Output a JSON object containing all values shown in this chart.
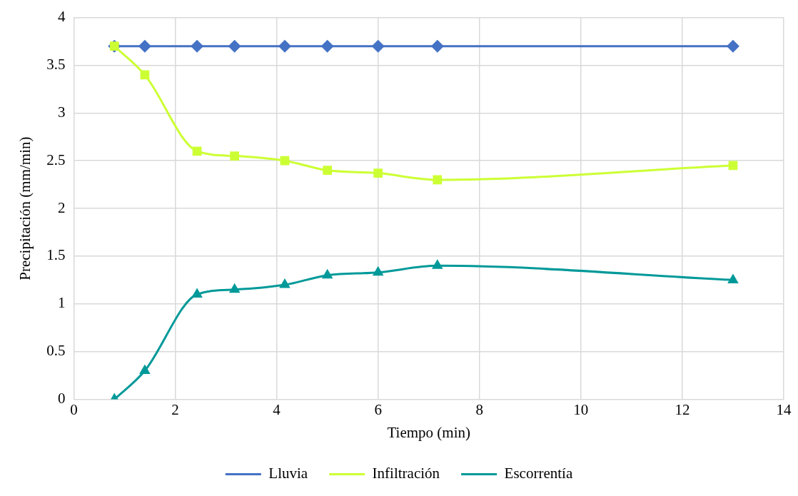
{
  "chart_data": {
    "type": "line",
    "xlabel": "Tiempo (min)",
    "ylabel": "Precipitación (mm/min)",
    "x": [
      0.8,
      1.4,
      2.43,
      3.17,
      4.16,
      5.0,
      6.0,
      7.17,
      13.0
    ],
    "series": [
      {
        "name": "Lluvia",
        "color": "#4472c4",
        "marker": "diamond",
        "values": [
          3.7,
          3.7,
          3.7,
          3.7,
          3.7,
          3.7,
          3.7,
          3.7,
          3.7
        ]
      },
      {
        "name": "Infiltración",
        "color": "#ccff33",
        "marker": "square",
        "values": [
          3.7,
          3.4,
          2.6,
          2.55,
          2.5,
          2.4,
          2.37,
          2.3,
          2.45
        ]
      },
      {
        "name": "Escorrentía",
        "color": "#009999",
        "marker": "triangle",
        "values": [
          0,
          0.3,
          1.1,
          1.15,
          1.2,
          1.3,
          1.33,
          1.4,
          1.25
        ]
      }
    ],
    "xlim": [
      0,
      14
    ],
    "xticks": [
      0,
      2,
      4,
      6,
      8,
      10,
      12,
      14
    ],
    "ylim": [
      0,
      4
    ],
    "yticks": [
      0,
      0.5,
      1,
      1.5,
      2,
      2.5,
      3,
      3.5,
      4
    ],
    "grid": true,
    "legend": "bottom",
    "line_style": "solid"
  }
}
